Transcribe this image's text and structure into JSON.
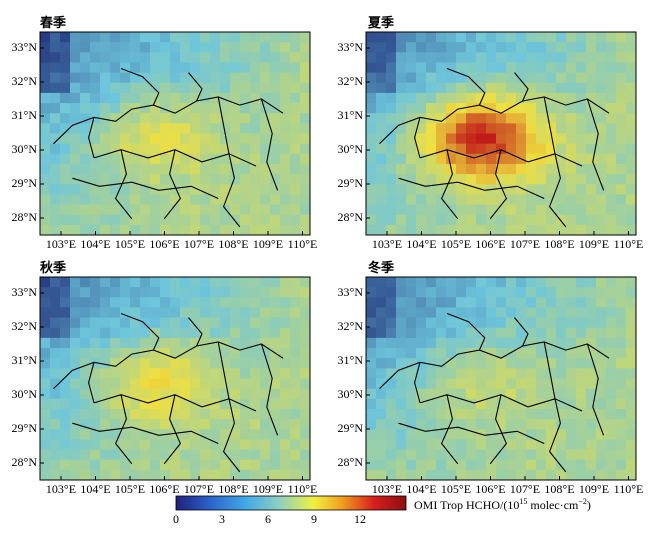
{
  "panels": [
    {
      "id": "spring",
      "title": "春季",
      "intensity": 0.42
    },
    {
      "id": "summer",
      "title": "夏季",
      "intensity": 1.0
    },
    {
      "id": "autumn",
      "title": "秋季",
      "intensity": 0.48
    },
    {
      "id": "winter",
      "title": "冬季",
      "intensity": 0.3
    }
  ],
  "lat_ticks": [
    "33°N",
    "32°N",
    "31°N",
    "30°N",
    "29°N",
    "28°N"
  ],
  "lon_ticks": [
    "103°E",
    "104°E",
    "105°E",
    "106°E",
    "107°E",
    "108°E",
    "109°E",
    "110°E"
  ],
  "colorbar": {
    "ticks": [
      "0",
      "3",
      "6",
      "9",
      "12"
    ],
    "title": "OMI Trop HCHO/(10",
    "title_exp": "15",
    "title_tail": " molec·cm",
    "title_tail_exp": "−2",
    "title_close": ")",
    "range": [
      0,
      15
    ],
    "colors": [
      "#20207a",
      "#2a5fc8",
      "#40a8e8",
      "#8fd0c0",
      "#f0f040",
      "#f0a020",
      "#d81e1e",
      "#8c1010"
    ]
  },
  "map_colors": {
    "low": "#20307a",
    "mid": "#6ec6dc",
    "high": "#f0e040",
    "peak": "#c01818"
  }
}
